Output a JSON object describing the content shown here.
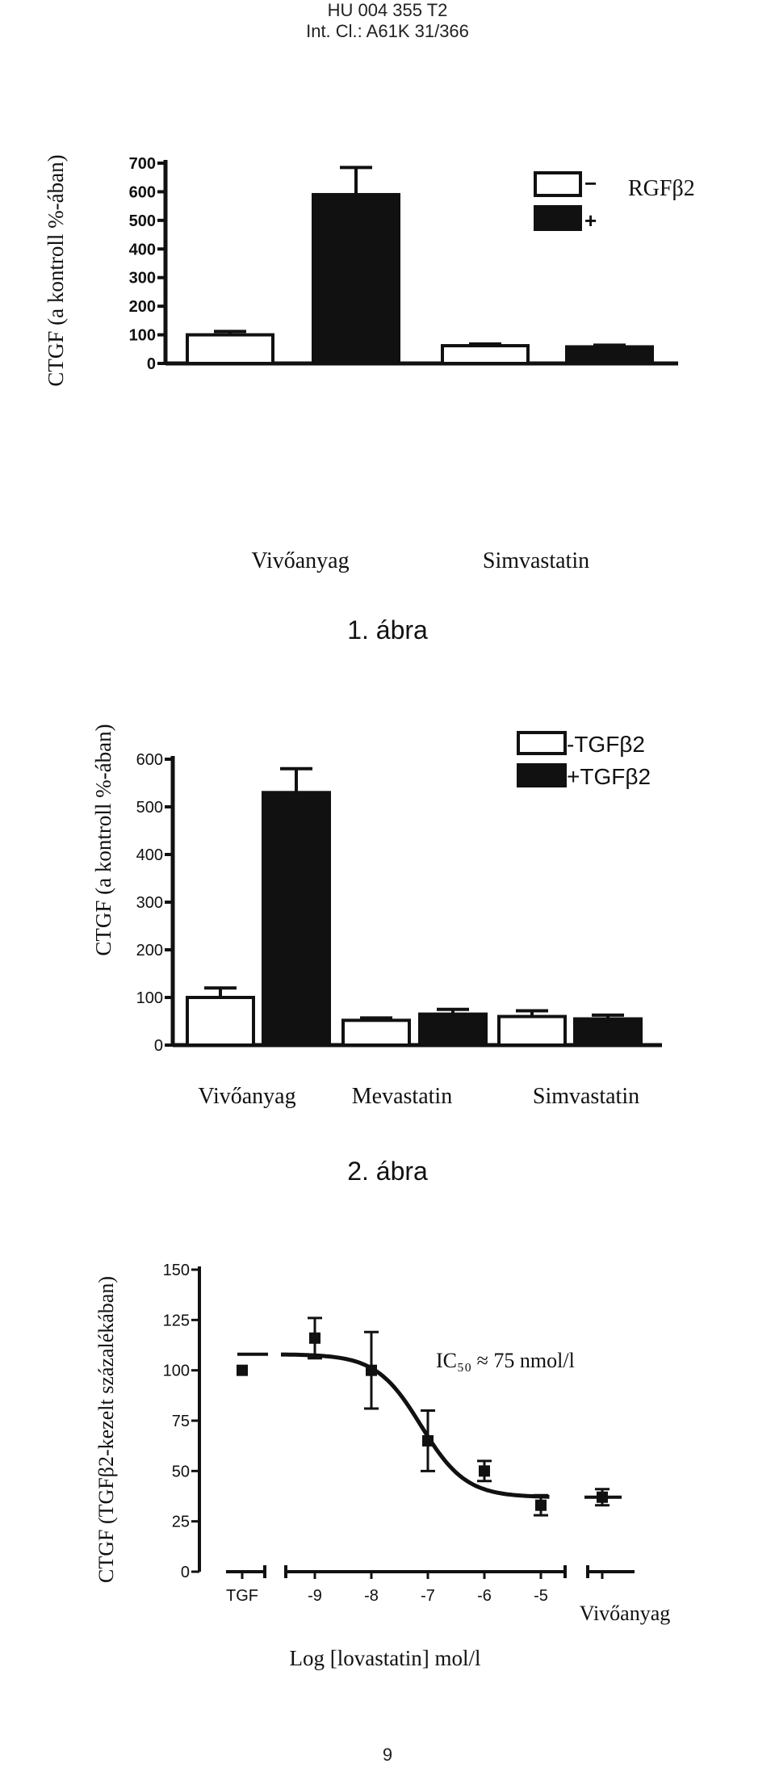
{
  "header": {
    "line1": "HU 004 355 T2",
    "line2": "Int. Cl.: A61K 31/366"
  },
  "page_number": "9",
  "chart_data": [
    {
      "type": "bar",
      "caption": "1. ábra",
      "ylabel": "CTGF (a kontroll %-ában)",
      "ylim": [
        0,
        700
      ],
      "yticks": [
        "0",
        "100",
        "200",
        "300",
        "400",
        "500",
        "600",
        "700"
      ],
      "categories": [
        "Vivőanyag",
        "Simvastatin"
      ],
      "legend_suffix": "RGFβ2",
      "series": [
        {
          "name": "−",
          "fill": "#ffffff",
          "values": [
            100,
            62
          ],
          "errors": [
            12,
            6
          ]
        },
        {
          "name": "+",
          "fill": "#111111",
          "values": [
            590,
            58
          ],
          "errors": [
            95,
            6
          ]
        }
      ]
    },
    {
      "type": "bar",
      "caption": "2. ábra",
      "ylabel": "CTGF (a kontroll %-ában)",
      "ylim": [
        0,
        600
      ],
      "yticks": [
        "0",
        "100",
        "200",
        "300",
        "400",
        "500",
        "600"
      ],
      "categories": [
        "Vivőanyag",
        "Mevastatin",
        "Simvastatin"
      ],
      "series": [
        {
          "name": "-TGFβ2",
          "fill": "#ffffff",
          "values": [
            100,
            52,
            60
          ],
          "errors": [
            20,
            5,
            12
          ]
        },
        {
          "name": "+TGFβ2",
          "fill": "#111111",
          "values": [
            530,
            65,
            55
          ],
          "errors": [
            50,
            10,
            8
          ]
        }
      ]
    },
    {
      "type": "scatter",
      "ylabel": "CTGF (TGFβ2-kezelt százalékában)",
      "xlabel": "Log [lovastatin] mol/l",
      "ylim": [
        0,
        150
      ],
      "yticks": [
        "0",
        "25",
        "50",
        "75",
        "100",
        "125",
        "150"
      ],
      "xtick_labels": [
        "TGF",
        "-9",
        "-8",
        "-7",
        "-6",
        "-5",
        "Vivőanyag"
      ],
      "annotation": "IC₅₀ ≈ 75 nmol/l",
      "points": [
        {
          "x": "TGF",
          "y": 100,
          "err": 0
        },
        {
          "x": -9,
          "y": 116,
          "err": 10
        },
        {
          "x": -8,
          "y": 100,
          "err": 19
        },
        {
          "x": -7,
          "y": 65,
          "err": 15
        },
        {
          "x": -6,
          "y": 50,
          "err": 5
        },
        {
          "x": -5,
          "y": 33,
          "err": 5
        },
        {
          "x": "Vivőanyag",
          "y": 37,
          "err": 4
        }
      ],
      "fit": {
        "top": 108,
        "bottom": 37,
        "log_ic50": -7.12,
        "hill": 1.1
      }
    }
  ]
}
